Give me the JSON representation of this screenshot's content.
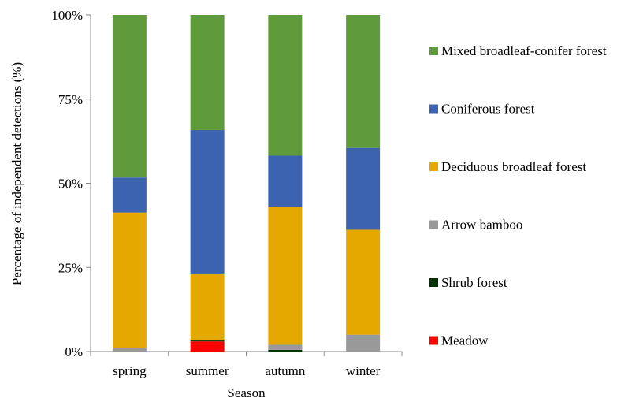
{
  "chart_data": {
    "type": "bar",
    "stacked": true,
    "title": "",
    "xlabel": "Season",
    "ylabel": "Percentage of independent detections (%)",
    "ylim": [
      0,
      100
    ],
    "yticks": [
      "0%",
      "25%",
      "50%",
      "75%",
      "100%"
    ],
    "categories": [
      "spring",
      "summer",
      "autumn",
      "winter"
    ],
    "grid": false,
    "legend_position": "right",
    "series": [
      {
        "name": "Meadow",
        "color": "#ff0000",
        "values": [
          0,
          3.0,
          0,
          0
        ]
      },
      {
        "name": "Shrub forest",
        "color": "#003300",
        "values": [
          0,
          0.5,
          0.5,
          0
        ]
      },
      {
        "name": "Arrow bamboo",
        "color": "#999999",
        "values": [
          1.0,
          0,
          1.5,
          5.0
        ]
      },
      {
        "name": "Deciduous broadleaf forest",
        "color": "#e5a800",
        "values": [
          40.3,
          19.7,
          40.9,
          31.2
        ]
      },
      {
        "name": "Coniferous forest",
        "color": "#3c63b0",
        "values": [
          10.4,
          42.6,
          15.3,
          24.3
        ]
      },
      {
        "name": "Mixed broadleaf-conifer forest",
        "color": "#5f9b3a",
        "values": [
          48.3,
          34.2,
          41.8,
          39.5
        ]
      }
    ]
  }
}
